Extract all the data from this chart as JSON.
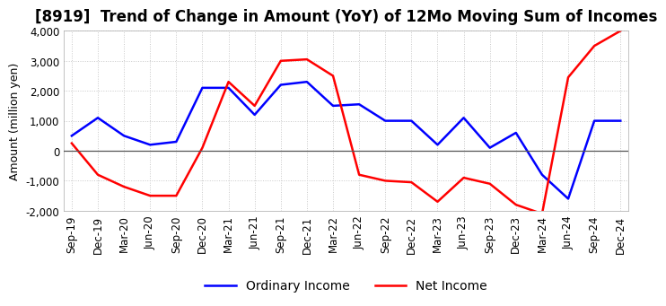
{
  "title": "[8919]  Trend of Change in Amount (YoY) of 12Mo Moving Sum of Incomes",
  "ylabel": "Amount (million yen)",
  "ylim": [
    -2000,
    4000
  ],
  "yticks": [
    -2000,
    -1000,
    0,
    1000,
    2000,
    3000,
    4000
  ],
  "dates": [
    "Sep-19",
    "Dec-19",
    "Mar-20",
    "Jun-20",
    "Sep-20",
    "Dec-20",
    "Mar-21",
    "Jun-21",
    "Sep-21",
    "Dec-21",
    "Mar-22",
    "Jun-22",
    "Sep-22",
    "Dec-22",
    "Mar-23",
    "Jun-23",
    "Sep-23",
    "Dec-23",
    "Mar-24",
    "Jun-24",
    "Sep-24",
    "Dec-24"
  ],
  "ordinary_income": [
    500,
    1100,
    500,
    200,
    300,
    2100,
    2100,
    1200,
    2200,
    2300,
    1500,
    1550,
    1000,
    1000,
    200,
    1100,
    100,
    600,
    -800,
    -1600,
    1000,
    1000
  ],
  "net_income": [
    250,
    -800,
    -1200,
    -1500,
    -1500,
    100,
    2300,
    1500,
    3000,
    3050,
    2500,
    -800,
    -1000,
    -1050,
    -1700,
    -900,
    -1100,
    -1800,
    -2100,
    2450,
    3500,
    4000
  ],
  "ordinary_color": "#0000ff",
  "net_color": "#ff0000",
  "line_width": 1.8,
  "title_fontsize": 12,
  "axis_fontsize": 9,
  "tick_fontsize": 8.5,
  "legend_fontsize": 10,
  "background_color": "#ffffff",
  "grid_color": "#c8c8c8",
  "grid_style": "dotted"
}
